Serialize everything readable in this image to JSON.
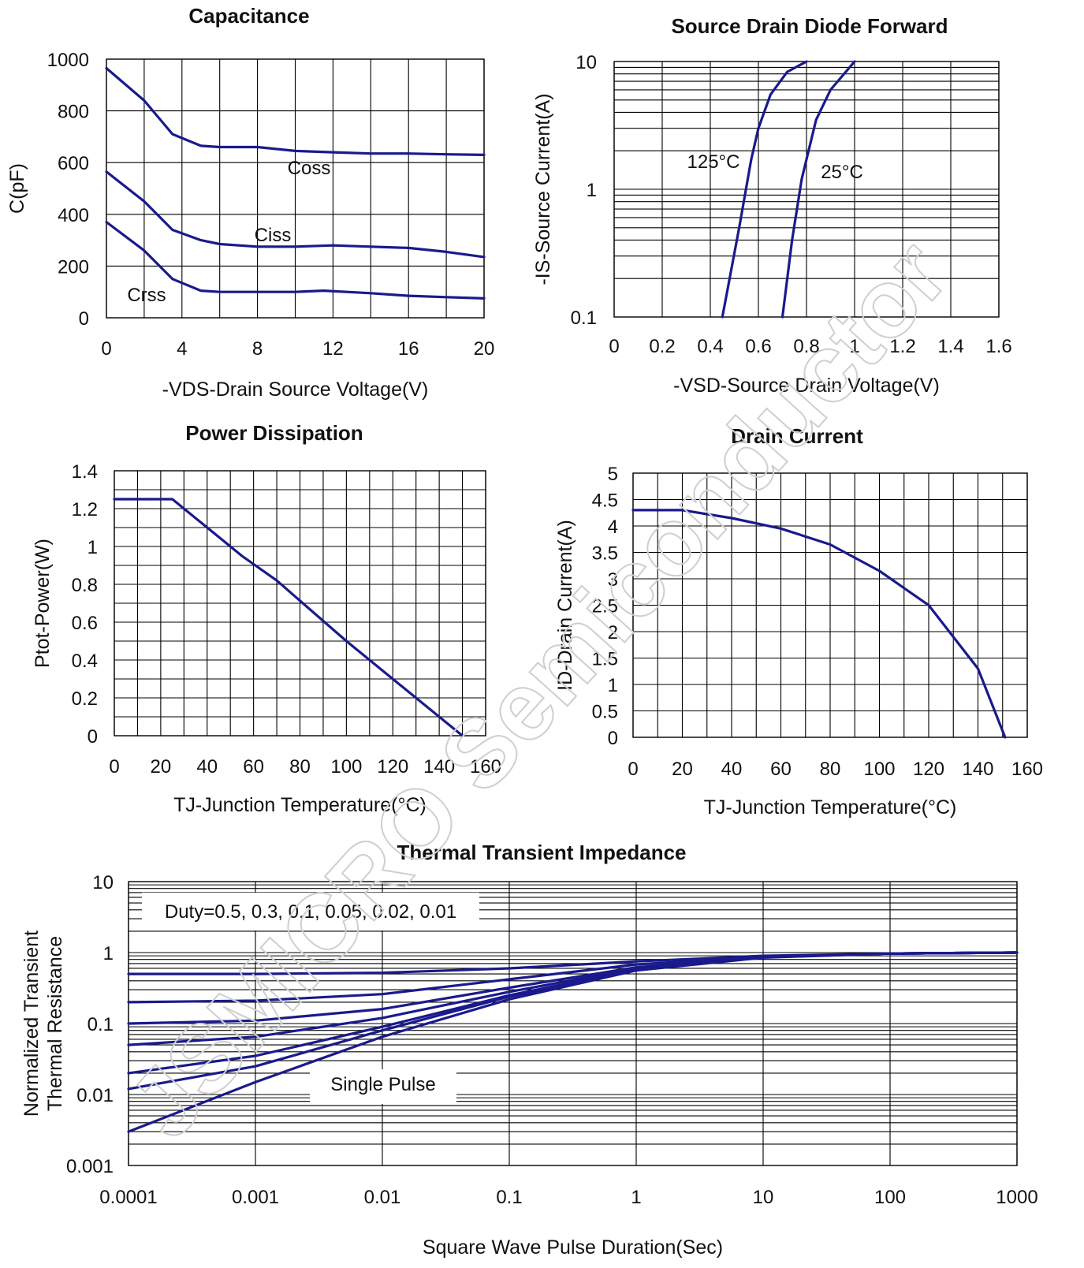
{
  "watermark": "JSMICRO Semiconductor",
  "colors": {
    "curve": "#1a1a8c",
    "grid": "#000000"
  },
  "chart_data": [
    {
      "type": "line",
      "title": "Capacitance",
      "xlabel": "-VDS-Drain Source Voltage(V)",
      "ylabel": "C(pF)",
      "xlim": [
        0,
        20
      ],
      "ylim": [
        0,
        1000
      ],
      "xticks": [
        "0",
        "4",
        "8",
        "12",
        "16",
        "20"
      ],
      "yticks": [
        "0",
        "200",
        "400",
        "600",
        "800",
        "1000"
      ],
      "grid": true,
      "series": [
        {
          "name": "Coss",
          "x": [
            0,
            2,
            3.5,
            5,
            6,
            8,
            10,
            12,
            14,
            16,
            18,
            20
          ],
          "y": [
            965,
            840,
            710,
            665,
            660,
            660,
            645,
            640,
            635,
            635,
            632,
            630
          ]
        },
        {
          "name": "Ciss",
          "x": [
            0,
            2,
            3.5,
            5,
            6,
            8,
            10,
            12,
            14,
            16,
            18,
            20
          ],
          "y": [
            565,
            450,
            340,
            300,
            285,
            275,
            275,
            280,
            275,
            270,
            255,
            235
          ]
        },
        {
          "name": "Crss",
          "x": [
            0,
            2,
            3.5,
            5,
            6,
            8,
            10,
            11.5,
            14,
            16,
            18,
            20
          ],
          "y": [
            370,
            260,
            150,
            105,
            100,
            100,
            100,
            105,
            95,
            85,
            80,
            75
          ]
        }
      ]
    },
    {
      "type": "line",
      "title": "Source Drain Diode Forward",
      "xlabel": "-VSD-Source Drain Voltage(V)",
      "ylabel": "-IS-Source Current(A)",
      "xlim": [
        0,
        1.6
      ],
      "ylim": [
        0.1,
        10
      ],
      "yscale": "log",
      "xticks": [
        "0",
        "0.2",
        "0.4",
        "0.6",
        "0.8",
        "1",
        "1.2",
        "1.4",
        "1.6"
      ],
      "yticks": [
        "0.1",
        "1",
        "10"
      ],
      "grid": true,
      "series": [
        {
          "name": "125°C",
          "x": [
            0.45,
            0.52,
            0.57,
            0.6,
            0.65,
            0.72,
            0.8
          ],
          "y": [
            0.1,
            0.5,
            1.7,
            3,
            5.5,
            8.3,
            10
          ]
        },
        {
          "name": "25°C",
          "x": [
            0.7,
            0.74,
            0.78,
            0.84,
            0.9,
            1.0
          ],
          "y": [
            0.1,
            0.4,
            1.2,
            3.5,
            6,
            10
          ]
        }
      ]
    },
    {
      "type": "line",
      "title": "Power Dissipation",
      "xlabel": "TJ-Junction Temperature(°C)",
      "ylabel": "Ptot-Power(W)",
      "xlim": [
        0,
        160
      ],
      "ylim": [
        0,
        1.4
      ],
      "xticks": [
        "0",
        "20",
        "40",
        "60",
        "80",
        "100",
        "120",
        "140",
        "160"
      ],
      "yticks": [
        "0",
        "0.2",
        "0.4",
        "0.6",
        "0.8",
        "1",
        "1.2",
        "1.4"
      ],
      "grid": true,
      "series": [
        {
          "x": [
            0,
            25,
            40,
            55,
            70,
            100,
            130,
            150
          ],
          "y": [
            1.25,
            1.25,
            1.1,
            0.95,
            0.82,
            0.5,
            0.2,
            0
          ]
        }
      ]
    },
    {
      "type": "line",
      "title": "Drain Current",
      "xlabel": "TJ-Junction Temperature(°C)",
      "ylabel": "ID-Drain Current(A)",
      "xlim": [
        0,
        160
      ],
      "ylim": [
        0,
        5
      ],
      "xticks": [
        "0",
        "20",
        "40",
        "60",
        "80",
        "100",
        "120",
        "140",
        "160"
      ],
      "yticks": [
        "0",
        "0.5",
        "1",
        "1.5",
        "2",
        "2.5",
        "3",
        "3.5",
        "4",
        "4.5",
        "5"
      ],
      "grid": true,
      "series": [
        {
          "x": [
            0,
            20,
            40,
            60,
            80,
            100,
            120,
            140,
            151
          ],
          "y": [
            4.3,
            4.3,
            4.15,
            3.95,
            3.65,
            3.15,
            2.5,
            1.3,
            0
          ]
        }
      ]
    },
    {
      "type": "line",
      "title": "Thermal Transient Impedance",
      "xlabel": "Square Wave Pulse Duration(Sec)",
      "ylabel": [
        "Normalized Transient",
        "Thermal Resistance"
      ],
      "xlim": [
        0.0001,
        1000
      ],
      "ylim": [
        0.001,
        10
      ],
      "xscale": "log",
      "yscale": "log",
      "xticks": [
        "0.0001",
        "0.001",
        "0.01",
        "0.1",
        "1",
        "10",
        "100",
        "1000"
      ],
      "yticks": [
        "0.001",
        "0.01",
        "0.1",
        "1",
        "10"
      ],
      "grid": true,
      "annotations": [
        "Duty=0.5, 0.3, 0.1, 0.05, 0.02, 0.01",
        "Single Pulse"
      ],
      "series": [
        {
          "name": "0.5",
          "x": [
            0.0001,
            0.001,
            0.01,
            0.1,
            1,
            10,
            100,
            1000
          ],
          "y": [
            0.5,
            0.5,
            0.52,
            0.6,
            0.75,
            0.9,
            0.97,
            1.0
          ]
        },
        {
          "name": "0.3",
          "x": [
            0.0001,
            0.001,
            0.01,
            0.1,
            1,
            10,
            100,
            1000
          ],
          "y": [
            0.2,
            0.21,
            0.26,
            0.42,
            0.68,
            0.88,
            0.97,
            1.0
          ]
        },
        {
          "name": "0.1",
          "x": [
            0.0001,
            0.001,
            0.01,
            0.1,
            1,
            10,
            100,
            1000
          ],
          "y": [
            0.1,
            0.11,
            0.16,
            0.32,
            0.62,
            0.87,
            0.97,
            1.0
          ]
        },
        {
          "name": "0.05",
          "x": [
            0.0001,
            0.001,
            0.01,
            0.1,
            1,
            10,
            100,
            1000
          ],
          "y": [
            0.05,
            0.065,
            0.12,
            0.28,
            0.6,
            0.86,
            0.97,
            1.0
          ]
        },
        {
          "name": "0.02",
          "x": [
            0.0001,
            0.001,
            0.01,
            0.1,
            1,
            10,
            100,
            1000
          ],
          "y": [
            0.02,
            0.035,
            0.09,
            0.25,
            0.58,
            0.86,
            0.97,
            1.0
          ]
        },
        {
          "name": "0.01",
          "x": [
            0.0001,
            0.001,
            0.01,
            0.1,
            1,
            10,
            100,
            1000
          ],
          "y": [
            0.012,
            0.025,
            0.08,
            0.24,
            0.57,
            0.86,
            0.97,
            1.0
          ]
        },
        {
          "name": "Single Pulse",
          "x": [
            0.0001,
            0.001,
            0.01,
            0.1,
            1,
            10,
            100,
            1000
          ],
          "y": [
            0.003,
            0.015,
            0.065,
            0.22,
            0.56,
            0.85,
            0.97,
            1.0
          ]
        }
      ]
    }
  ]
}
